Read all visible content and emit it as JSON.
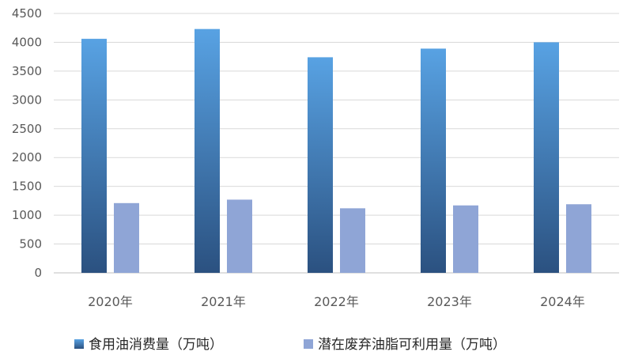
{
  "chart_data": {
    "type": "bar",
    "categories": [
      "2020年",
      "2021年",
      "2022年",
      "2023年",
      "2024年"
    ],
    "series": [
      {
        "name": "食用油消费量（万吨）",
        "values": [
          4060,
          4230,
          3740,
          3890,
          4000
        ]
      },
      {
        "name": "潜在废弃油脂可利用量（万吨）",
        "values": [
          1210,
          1270,
          1120,
          1170,
          1190
        ]
      }
    ],
    "title": "",
    "xlabel": "",
    "ylabel": "",
    "ylim": [
      0,
      4500
    ],
    "yticks": [
      0,
      500,
      1000,
      1500,
      2000,
      2500,
      3000,
      3500,
      4000,
      4500
    ],
    "grid": true,
    "legend": "bottom",
    "colors": {
      "series1_top": "#58a2e3",
      "series1_bottom": "#2b5180",
      "series2": "#8fa5d6",
      "grid": "#d9d9d9",
      "axis": "#bfbfbf"
    }
  }
}
